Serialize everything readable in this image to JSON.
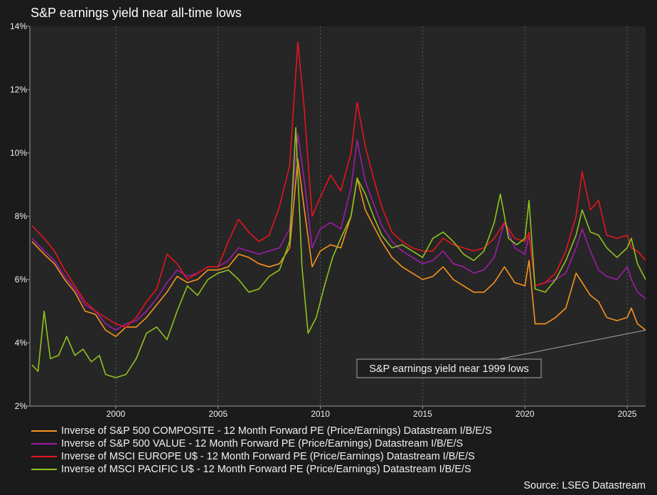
{
  "chart_data": {
    "type": "line",
    "title": "S&P earnings yield near all-time lows",
    "xlabel": "",
    "ylabel": "",
    "xlim": [
      1995.8,
      2025.9
    ],
    "ylim": [
      2,
      14
    ],
    "x_ticks": [
      2000,
      2005,
      2010,
      2015,
      2020,
      2025
    ],
    "x_tick_labels": [
      "2000",
      "2005",
      "2010",
      "2015",
      "2020",
      "2025"
    ],
    "y_ticks": [
      2,
      4,
      6,
      8,
      10,
      12,
      14
    ],
    "y_tick_labels": [
      "2%",
      "4%",
      "6%",
      "8%",
      "10%",
      "12%",
      "14%"
    ],
    "grid": "vertical dashed",
    "legend_position": "bottom",
    "background_color": "#1b1b1b",
    "plot_background_color": "#262626",
    "annotation": {
      "text": "S&P earnings yield near 1999 lows",
      "point": [
        2025.9,
        4.4
      ]
    },
    "source": "Source: LSEG Datastream",
    "series": [
      {
        "name": "Inverse of S&P 500 COMPOSITE - 12 Month Forward PE (Price/Earnings) Datastream I/B/E/S",
        "color": "#f7941d",
        "points": [
          [
            1995.9,
            7.2
          ],
          [
            1996.5,
            6.8
          ],
          [
            1997.0,
            6.5
          ],
          [
            1997.5,
            6.0
          ],
          [
            1998.0,
            5.6
          ],
          [
            1998.5,
            5.0
          ],
          [
            1999.0,
            4.9
          ],
          [
            1999.5,
            4.4
          ],
          [
            2000.0,
            4.2
          ],
          [
            2000.5,
            4.5
          ],
          [
            2001.0,
            4.5
          ],
          [
            2001.5,
            4.8
          ],
          [
            2002.0,
            5.2
          ],
          [
            2002.5,
            5.6
          ],
          [
            2003.0,
            6.1
          ],
          [
            2003.5,
            5.9
          ],
          [
            2004.0,
            6.0
          ],
          [
            2004.5,
            6.3
          ],
          [
            2005.0,
            6.3
          ],
          [
            2005.5,
            6.4
          ],
          [
            2006.0,
            6.8
          ],
          [
            2006.5,
            6.7
          ],
          [
            2007.0,
            6.5
          ],
          [
            2007.5,
            6.4
          ],
          [
            2008.0,
            6.5
          ],
          [
            2008.5,
            7.0
          ],
          [
            2008.9,
            9.8
          ],
          [
            2009.2,
            8.3
          ],
          [
            2009.6,
            6.4
          ],
          [
            2010.0,
            6.9
          ],
          [
            2010.5,
            7.1
          ],
          [
            2011.0,
            7.0
          ],
          [
            2011.5,
            8.0
          ],
          [
            2011.8,
            9.2
          ],
          [
            2012.2,
            8.2
          ],
          [
            2012.6,
            7.7
          ],
          [
            2013.0,
            7.2
          ],
          [
            2013.5,
            6.7
          ],
          [
            2014.0,
            6.4
          ],
          [
            2014.5,
            6.2
          ],
          [
            2015.0,
            6.0
          ],
          [
            2015.5,
            6.1
          ],
          [
            2016.0,
            6.4
          ],
          [
            2016.5,
            6.0
          ],
          [
            2017.0,
            5.8
          ],
          [
            2017.5,
            5.6
          ],
          [
            2018.0,
            5.6
          ],
          [
            2018.5,
            5.9
          ],
          [
            2019.0,
            6.4
          ],
          [
            2019.5,
            5.9
          ],
          [
            2020.0,
            5.8
          ],
          [
            2020.2,
            6.6
          ],
          [
            2020.5,
            4.6
          ],
          [
            2021.0,
            4.6
          ],
          [
            2021.5,
            4.8
          ],
          [
            2022.0,
            5.1
          ],
          [
            2022.5,
            6.2
          ],
          [
            2022.8,
            5.9
          ],
          [
            2023.2,
            5.5
          ],
          [
            2023.6,
            5.3
          ],
          [
            2024.0,
            4.8
          ],
          [
            2024.5,
            4.7
          ],
          [
            2025.0,
            4.8
          ],
          [
            2025.2,
            5.1
          ],
          [
            2025.5,
            4.6
          ],
          [
            2025.9,
            4.4
          ]
        ]
      },
      {
        "name": "Inverse of S&P 500 VALUE - 12 Month Forward PE (Price/Earnings) Datastream I/B/E/S",
        "color": "#a01ca8",
        "points": [
          [
            1995.9,
            7.3
          ],
          [
            1996.5,
            6.9
          ],
          [
            1997.0,
            6.6
          ],
          [
            1997.5,
            6.1
          ],
          [
            1998.0,
            5.7
          ],
          [
            1998.5,
            5.2
          ],
          [
            1999.0,
            5.0
          ],
          [
            1999.5,
            4.6
          ],
          [
            2000.0,
            4.4
          ],
          [
            2000.5,
            4.6
          ],
          [
            2001.0,
            4.7
          ],
          [
            2001.5,
            5.0
          ],
          [
            2002.0,
            5.4
          ],
          [
            2002.5,
            5.9
          ],
          [
            2003.0,
            6.3
          ],
          [
            2003.5,
            6.1
          ],
          [
            2004.0,
            6.2
          ],
          [
            2004.5,
            6.4
          ],
          [
            2005.0,
            6.4
          ],
          [
            2005.5,
            6.6
          ],
          [
            2006.0,
            7.0
          ],
          [
            2006.5,
            6.9
          ],
          [
            2007.0,
            6.8
          ],
          [
            2007.5,
            6.9
          ],
          [
            2008.0,
            7.0
          ],
          [
            2008.5,
            7.6
          ],
          [
            2008.9,
            10.6
          ],
          [
            2009.2,
            9.2
          ],
          [
            2009.6,
            7.0
          ],
          [
            2010.0,
            7.6
          ],
          [
            2010.5,
            7.8
          ],
          [
            2011.0,
            7.6
          ],
          [
            2011.5,
            8.9
          ],
          [
            2011.8,
            10.4
          ],
          [
            2012.2,
            9.1
          ],
          [
            2012.6,
            8.4
          ],
          [
            2013.0,
            7.7
          ],
          [
            2013.5,
            7.2
          ],
          [
            2014.0,
            6.9
          ],
          [
            2014.5,
            6.7
          ],
          [
            2015.0,
            6.5
          ],
          [
            2015.5,
            6.6
          ],
          [
            2016.0,
            6.9
          ],
          [
            2016.5,
            6.5
          ],
          [
            2017.0,
            6.4
          ],
          [
            2017.5,
            6.2
          ],
          [
            2018.0,
            6.3
          ],
          [
            2018.5,
            6.7
          ],
          [
            2019.0,
            7.8
          ],
          [
            2019.5,
            7.0
          ],
          [
            2020.0,
            6.8
          ],
          [
            2020.2,
            7.4
          ],
          [
            2020.5,
            5.8
          ],
          [
            2021.0,
            5.9
          ],
          [
            2021.5,
            6.0
          ],
          [
            2022.0,
            6.2
          ],
          [
            2022.5,
            7.0
          ],
          [
            2022.8,
            7.6
          ],
          [
            2023.2,
            6.9
          ],
          [
            2023.6,
            6.3
          ],
          [
            2024.0,
            6.1
          ],
          [
            2024.5,
            6.0
          ],
          [
            2025.0,
            6.4
          ],
          [
            2025.2,
            6.0
          ],
          [
            2025.5,
            5.6
          ],
          [
            2025.9,
            5.4
          ]
        ]
      },
      {
        "name": "Inverse of MSCI EUROPE U$ - 12 Month Forward PE (Price/Earnings) Datastream I/B/E/S",
        "color": "#e8141e",
        "points": [
          [
            1995.9,
            7.7
          ],
          [
            1996.5,
            7.3
          ],
          [
            1997.0,
            6.9
          ],
          [
            1997.5,
            6.3
          ],
          [
            1998.0,
            5.8
          ],
          [
            1998.5,
            5.3
          ],
          [
            1999.0,
            5.0
          ],
          [
            1999.5,
            4.8
          ],
          [
            2000.0,
            4.6
          ],
          [
            2000.5,
            4.5
          ],
          [
            2001.0,
            4.8
          ],
          [
            2001.5,
            5.3
          ],
          [
            2002.0,
            5.7
          ],
          [
            2002.5,
            6.8
          ],
          [
            2003.0,
            6.5
          ],
          [
            2003.5,
            6.0
          ],
          [
            2004.0,
            6.2
          ],
          [
            2004.5,
            6.4
          ],
          [
            2005.0,
            6.4
          ],
          [
            2005.5,
            7.2
          ],
          [
            2006.0,
            7.9
          ],
          [
            2006.5,
            7.5
          ],
          [
            2007.0,
            7.2
          ],
          [
            2007.5,
            7.4
          ],
          [
            2008.0,
            8.3
          ],
          [
            2008.5,
            9.6
          ],
          [
            2008.9,
            13.5
          ],
          [
            2009.2,
            11.5
          ],
          [
            2009.6,
            8.0
          ],
          [
            2010.0,
            8.6
          ],
          [
            2010.5,
            9.3
          ],
          [
            2011.0,
            8.8
          ],
          [
            2011.5,
            10.0
          ],
          [
            2011.8,
            11.6
          ],
          [
            2012.2,
            10.2
          ],
          [
            2012.6,
            9.2
          ],
          [
            2013.0,
            8.3
          ],
          [
            2013.5,
            7.5
          ],
          [
            2014.0,
            7.2
          ],
          [
            2014.5,
            7.0
          ],
          [
            2015.0,
            6.9
          ],
          [
            2015.5,
            6.9
          ],
          [
            2016.0,
            7.3
          ],
          [
            2016.5,
            7.1
          ],
          [
            2017.0,
            7.0
          ],
          [
            2017.5,
            6.9
          ],
          [
            2018.0,
            7.0
          ],
          [
            2018.5,
            7.3
          ],
          [
            2019.0,
            7.8
          ],
          [
            2019.5,
            7.3
          ],
          [
            2020.0,
            7.2
          ],
          [
            2020.2,
            7.5
          ],
          [
            2020.5,
            5.8
          ],
          [
            2021.0,
            5.9
          ],
          [
            2021.5,
            6.2
          ],
          [
            2022.0,
            6.9
          ],
          [
            2022.5,
            8.0
          ],
          [
            2022.8,
            9.4
          ],
          [
            2023.2,
            8.2
          ],
          [
            2023.6,
            8.5
          ],
          [
            2024.0,
            7.4
          ],
          [
            2024.5,
            7.3
          ],
          [
            2025.0,
            7.4
          ],
          [
            2025.2,
            7.0
          ],
          [
            2025.5,
            6.9
          ],
          [
            2025.9,
            6.6
          ]
        ]
      },
      {
        "name": "Inverse of MSCI PACIFIC U$ - 12 Month Forward PE (Price/Earnings) Datastream I/B/E/S",
        "color": "#8fc31f",
        "points": [
          [
            1995.9,
            3.3
          ],
          [
            1996.2,
            3.1
          ],
          [
            1996.5,
            5.0
          ],
          [
            1996.8,
            3.5
          ],
          [
            1997.2,
            3.6
          ],
          [
            1997.6,
            4.2
          ],
          [
            1998.0,
            3.6
          ],
          [
            1998.4,
            3.8
          ],
          [
            1998.8,
            3.4
          ],
          [
            1999.2,
            3.6
          ],
          [
            1999.5,
            3.0
          ],
          [
            2000.0,
            2.9
          ],
          [
            2000.5,
            3.0
          ],
          [
            2001.0,
            3.5
          ],
          [
            2001.5,
            4.3
          ],
          [
            2002.0,
            4.5
          ],
          [
            2002.5,
            4.1
          ],
          [
            2003.0,
            5.0
          ],
          [
            2003.5,
            5.8
          ],
          [
            2004.0,
            5.5
          ],
          [
            2004.5,
            6.0
          ],
          [
            2005.0,
            6.2
          ],
          [
            2005.5,
            6.3
          ],
          [
            2006.0,
            6.0
          ],
          [
            2006.5,
            5.6
          ],
          [
            2007.0,
            5.7
          ],
          [
            2007.5,
            6.1
          ],
          [
            2008.0,
            6.3
          ],
          [
            2008.5,
            7.2
          ],
          [
            2008.8,
            10.8
          ],
          [
            2009.1,
            6.4
          ],
          [
            2009.4,
            4.3
          ],
          [
            2009.8,
            4.8
          ],
          [
            2010.2,
            5.8
          ],
          [
            2010.6,
            6.7
          ],
          [
            2011.0,
            7.3
          ],
          [
            2011.5,
            8.0
          ],
          [
            2011.8,
            9.2
          ],
          [
            2012.2,
            8.7
          ],
          [
            2012.6,
            8.0
          ],
          [
            2013.0,
            7.4
          ],
          [
            2013.5,
            7.0
          ],
          [
            2014.0,
            7.1
          ],
          [
            2014.5,
            6.9
          ],
          [
            2015.0,
            6.7
          ],
          [
            2015.5,
            7.3
          ],
          [
            2016.0,
            7.5
          ],
          [
            2016.5,
            7.2
          ],
          [
            2017.0,
            6.8
          ],
          [
            2017.5,
            6.6
          ],
          [
            2018.0,
            6.9
          ],
          [
            2018.5,
            7.8
          ],
          [
            2018.8,
            8.7
          ],
          [
            2019.2,
            7.3
          ],
          [
            2019.6,
            7.1
          ],
          [
            2020.0,
            7.3
          ],
          [
            2020.2,
            8.5
          ],
          [
            2020.5,
            5.7
          ],
          [
            2021.0,
            5.6
          ],
          [
            2021.5,
            6.0
          ],
          [
            2022.0,
            6.6
          ],
          [
            2022.5,
            7.4
          ],
          [
            2022.8,
            8.2
          ],
          [
            2023.2,
            7.5
          ],
          [
            2023.6,
            7.4
          ],
          [
            2024.0,
            7.0
          ],
          [
            2024.5,
            6.7
          ],
          [
            2025.0,
            7.0
          ],
          [
            2025.2,
            7.3
          ],
          [
            2025.5,
            6.5
          ],
          [
            2025.9,
            6.0
          ]
        ]
      }
    ]
  }
}
